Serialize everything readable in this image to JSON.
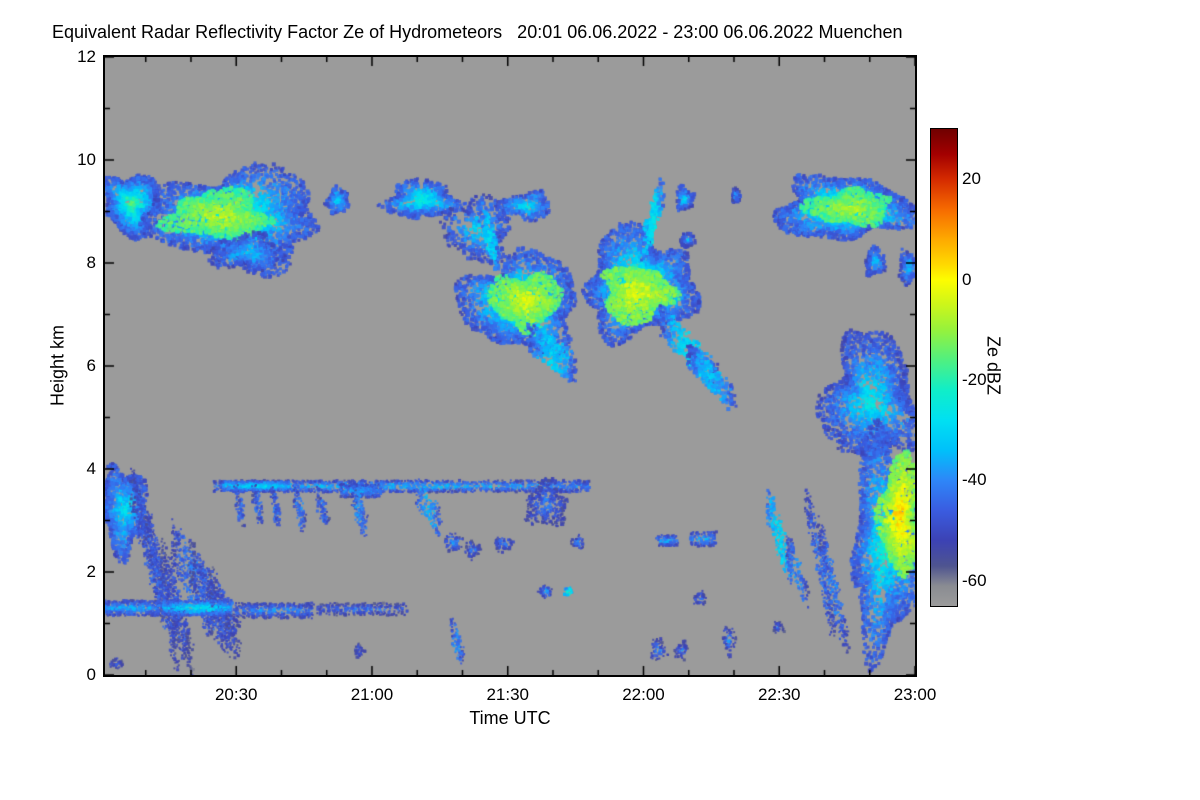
{
  "title": "Equivalent Radar Reflectivity Factor Ze of Hydrometeors   20:01 06.06.2022 - 23:00 06.06.2022 Muenchen",
  "chart_data": {
    "type": "heatmap",
    "title": "Equivalent Radar Reflectivity Factor Ze of Hydrometeors",
    "time_range": "20:01 06.06.2022 - 23:00 06.06.2022",
    "station": "Muenchen",
    "xlabel": "Time UTC",
    "ylabel": "Height km",
    "colorbar_label": "Ze dBZ",
    "background_color": "#9b9b9b",
    "xlim_minutes_after_2000": [
      1,
      180
    ],
    "ylim_km": [
      0,
      12
    ],
    "x_ticks": [
      {
        "t": 30,
        "label": "20:30"
      },
      {
        "t": 60,
        "label": "21:00"
      },
      {
        "t": 90,
        "label": "21:30"
      },
      {
        "t": 120,
        "label": "22:00"
      },
      {
        "t": 150,
        "label": "22:30"
      },
      {
        "t": 180,
        "label": "23:00"
      }
    ],
    "y_ticks": [
      0,
      2,
      4,
      6,
      8,
      10,
      12
    ],
    "colorbar": {
      "vmax": 30,
      "vmin": -65,
      "tick_values": [
        20,
        0,
        -20,
        -40,
        -60
      ],
      "stops": [
        [
          30,
          "#700000"
        ],
        [
          25,
          "#a30000"
        ],
        [
          20,
          "#d42a00"
        ],
        [
          14,
          "#f66a00"
        ],
        [
          8,
          "#feaa00"
        ],
        [
          3,
          "#ffd900"
        ],
        [
          0,
          "#fdfd00"
        ],
        [
          -5,
          "#ccf61a"
        ],
        [
          -10,
          "#96f23c"
        ],
        [
          -16,
          "#50f080"
        ],
        [
          -22,
          "#10eec8"
        ],
        [
          -28,
          "#00e0f2"
        ],
        [
          -34,
          "#00c0fa"
        ],
        [
          -40,
          "#2e86f8"
        ],
        [
          -46,
          "#3a5ce0"
        ],
        [
          -52,
          "#3c42b4"
        ],
        [
          -57,
          "#4e5490"
        ],
        [
          -61,
          "#8a8c92"
        ],
        [
          -65,
          "#9b9b9b"
        ]
      ]
    },
    "clouds": [
      {
        "s": "e",
        "t": [
          1,
          13
        ],
        "h": [
          8.55,
          9.75
        ],
        "core": -14,
        "edge": -48,
        "n": 1100
      },
      {
        "s": "e",
        "t": [
          11,
          49
        ],
        "h": [
          7.95,
          9.8
        ],
        "core": -16,
        "edge": -48,
        "n": 2600
      },
      {
        "s": "e",
        "t": [
          15,
          37
        ],
        "h": [
          8.45,
          9.4
        ],
        "core": -4,
        "edge": -18,
        "n": 1200
      },
      {
        "s": "e",
        "t": [
          24,
          41
        ],
        "h": [
          7.85,
          8.55
        ],
        "core": -30,
        "edge": -50,
        "n": 380
      },
      {
        "s": "e",
        "t": [
          50,
          55
        ],
        "h": [
          8.95,
          9.45
        ],
        "core": -28,
        "edge": -48,
        "n": 160
      },
      {
        "s": "e",
        "t": [
          63,
          79
        ],
        "h": [
          8.85,
          9.6
        ],
        "core": -20,
        "edge": -48,
        "n": 650
      },
      {
        "s": "e",
        "t": [
          76,
          91
        ],
        "h": [
          8.0,
          9.3
        ],
        "core": -28,
        "edge": -50,
        "n": 420
      },
      {
        "s": "k",
        "t": [
          84,
          88
        ],
        "h": [
          9.0,
          8.0
        ],
        "core": -30,
        "edge": -50,
        "n": 160,
        "th": 0.25
      },
      {
        "s": "e",
        "t": [
          88,
          100
        ],
        "h": [
          8.85,
          9.35
        ],
        "core": -26,
        "edge": -48,
        "n": 300
      },
      {
        "s": "e",
        "t": [
          80,
          106
        ],
        "h": [
          6.3,
          8.15
        ],
        "core": -15,
        "edge": -48,
        "n": 2000
      },
      {
        "s": "e",
        "t": [
          86,
          102
        ],
        "h": [
          6.75,
          7.8
        ],
        "core": -2,
        "edge": -16,
        "n": 900
      },
      {
        "s": "k",
        "t": [
          95,
          105
        ],
        "h": [
          6.55,
          5.95
        ],
        "core": -32,
        "edge": -52,
        "n": 260,
        "th": 0.3
      },
      {
        "s": "e",
        "t": [
          107,
          131
        ],
        "h": [
          6.55,
          8.6
        ],
        "core": -14,
        "edge": -48,
        "n": 2400
      },
      {
        "s": "e",
        "t": [
          111,
          126
        ],
        "h": [
          6.85,
          7.95
        ],
        "core": -2,
        "edge": -15,
        "n": 1100
      },
      {
        "s": "k",
        "t": [
          124,
          136
        ],
        "h": [
          6.9,
          5.75
        ],
        "core": -30,
        "edge": -52,
        "n": 300,
        "th": 0.3
      },
      {
        "s": "k",
        "t": [
          120,
          124
        ],
        "h": [
          8.3,
          9.4
        ],
        "core": -28,
        "edge": -48,
        "n": 180,
        "th": 0.3
      },
      {
        "s": "e",
        "t": [
          127,
          131
        ],
        "h": [
          9.0,
          9.5
        ],
        "core": -30,
        "edge": -50,
        "n": 110
      },
      {
        "s": "e",
        "t": [
          128,
          131.5
        ],
        "h": [
          8.3,
          8.6
        ],
        "core": -35,
        "edge": -52,
        "n": 60
      },
      {
        "s": "k",
        "t": [
          130,
          140
        ],
        "h": [
          6.2,
          5.35
        ],
        "core": -34,
        "edge": -54,
        "n": 240,
        "th": 0.25
      },
      {
        "s": "e",
        "t": [
          139.5,
          141.5
        ],
        "h": [
          9.15,
          9.45
        ],
        "core": -34,
        "edge": -52,
        "n": 50
      },
      {
        "s": "e",
        "t": [
          149,
          180
        ],
        "h": [
          8.45,
          9.65
        ],
        "core": -15,
        "edge": -48,
        "n": 2000
      },
      {
        "s": "e",
        "t": [
          156,
          175
        ],
        "h": [
          8.75,
          9.4
        ],
        "core": -6,
        "edge": -18,
        "n": 800
      },
      {
        "s": "e",
        "t": [
          169,
          173.5
        ],
        "h": [
          7.75,
          8.3
        ],
        "core": -30,
        "edge": -50,
        "n": 130
      },
      {
        "s": "e",
        "t": [
          176.5,
          180.5
        ],
        "h": [
          7.6,
          8.25
        ],
        "core": -30,
        "edge": -50,
        "n": 140
      },
      {
        "s": "e",
        "t": [
          160,
          180.5
        ],
        "h": [
          4.1,
          6.6
        ],
        "core": -24,
        "edge": -50,
        "n": 1900
      },
      {
        "s": "e",
        "t": [
          166,
          181
        ],
        "h": [
          0.45,
          4.6
        ],
        "core": -20,
        "edge": -48,
        "n": 2200
      },
      {
        "s": "e",
        "t": [
          172.5,
          181
        ],
        "h": [
          1.9,
          4.3
        ],
        "core": 6,
        "edge": -14,
        "n": 1300
      },
      {
        "s": "k",
        "t": [
          156,
          162
        ],
        "h": [
          3.4,
          1.0
        ],
        "core": -44,
        "edge": -56,
        "n": 260,
        "th": 0.35,
        "sz": 2
      },
      {
        "s": "k",
        "t": [
          159,
          165
        ],
        "h": [
          2.8,
          0.55
        ],
        "core": -42,
        "edge": -55,
        "n": 260,
        "th": 0.3,
        "sz": 2
      },
      {
        "s": "k",
        "t": [
          147.5,
          152.5
        ],
        "h": [
          3.35,
          2.0
        ],
        "core": -30,
        "edge": -50,
        "n": 260,
        "th": 0.3,
        "sz": 2
      },
      {
        "s": "k",
        "t": [
          152,
          156
        ],
        "h": [
          2.5,
          1.5
        ],
        "core": -40,
        "edge": -54,
        "n": 140,
        "th": 0.25,
        "sz": 2
      },
      {
        "s": "e",
        "t": [
          0.5,
          10
        ],
        "h": [
          2.35,
          4.05
        ],
        "core": -26,
        "edge": -48,
        "n": 900
      },
      {
        "s": "k",
        "t": [
          7,
          14
        ],
        "h": [
          3.7,
          1.4
        ],
        "core": -46,
        "edge": -57,
        "n": 420,
        "th": 0.5,
        "sz": 2
      },
      {
        "s": "k",
        "t": [
          10,
          17
        ],
        "h": [
          3.0,
          0.45
        ],
        "core": -46,
        "edge": -57,
        "n": 420,
        "th": 0.45,
        "sz": 2
      },
      {
        "s": "k",
        "t": [
          13.5,
          20
        ],
        "h": [
          2.3,
          0.3
        ],
        "core": -48,
        "edge": -58,
        "n": 380,
        "th": 0.4,
        "sz": 2
      },
      {
        "s": "k",
        "t": [
          16,
          25
        ],
        "h": [
          2.6,
          1.1
        ],
        "core": -42,
        "edge": -56,
        "n": 420,
        "th": 0.5,
        "sz": 2
      },
      {
        "s": "k",
        "t": [
          20,
          28.5
        ],
        "h": [
          2.2,
          0.75
        ],
        "core": -46,
        "edge": -57,
        "n": 380,
        "th": 0.45,
        "sz": 2
      },
      {
        "s": "k",
        "t": [
          24,
          30.5
        ],
        "h": [
          1.8,
          0.6
        ],
        "core": -48,
        "edge": -58,
        "n": 300,
        "th": 0.4,
        "sz": 2
      },
      {
        "s": "e",
        "t": [
          2,
          5
        ],
        "h": [
          0.1,
          0.35
        ],
        "core": -44,
        "edge": -55,
        "n": 40,
        "sz": 2
      },
      {
        "s": "b",
        "t": [
          0.5,
          13
        ],
        "h": [
          1.15,
          1.45
        ],
        "core": -34,
        "edge": -52,
        "n": 420,
        "sz": 2
      },
      {
        "s": "b",
        "t": [
          14,
          29
        ],
        "h": [
          1.15,
          1.45
        ],
        "core": -27,
        "edge": -48,
        "n": 520,
        "sz": 2
      },
      {
        "s": "b",
        "t": [
          30,
          47
        ],
        "h": [
          1.1,
          1.4
        ],
        "core": -38,
        "edge": -54,
        "n": 420,
        "sz": 2
      },
      {
        "s": "b",
        "t": [
          48,
          68
        ],
        "h": [
          1.15,
          1.4
        ],
        "core": -43,
        "edge": -56,
        "n": 260,
        "sz": 2
      },
      {
        "s": "b",
        "t": [
          25,
          108
        ],
        "h": [
          3.55,
          3.78
        ],
        "core": -34,
        "edge": -52,
        "n": 1500,
        "sz": 2
      },
      {
        "s": "b",
        "t": [
          27,
          42
        ],
        "h": [
          3.58,
          3.76
        ],
        "core": -28,
        "edge": -46,
        "n": 420,
        "sz": 2
      },
      {
        "s": "b",
        "t": [
          53,
          62
        ],
        "h": [
          3.45,
          3.72
        ],
        "core": -36,
        "edge": -52,
        "n": 300,
        "sz": 2
      },
      {
        "s": "k",
        "t": [
          30,
          31.5
        ],
        "h": [
          3.55,
          3.0
        ],
        "core": -44,
        "edge": -55,
        "n": 70,
        "th": 0.18,
        "sz": 2
      },
      {
        "s": "k",
        "t": [
          34,
          35.5
        ],
        "h": [
          3.55,
          3.05
        ],
        "core": -44,
        "edge": -55,
        "n": 70,
        "th": 0.18,
        "sz": 2
      },
      {
        "s": "k",
        "t": [
          38,
          39.5
        ],
        "h": [
          3.55,
          2.95
        ],
        "core": -44,
        "edge": -55,
        "n": 80,
        "th": 0.18,
        "sz": 2
      },
      {
        "s": "k",
        "t": [
          43,
          45
        ],
        "h": [
          3.55,
          2.9
        ],
        "core": -42,
        "edge": -55,
        "n": 90,
        "th": 0.2,
        "sz": 2
      },
      {
        "s": "k",
        "t": [
          48,
          50
        ],
        "h": [
          3.5,
          3.0
        ],
        "core": -44,
        "edge": -55,
        "n": 80,
        "th": 0.2,
        "sz": 2
      },
      {
        "s": "k",
        "t": [
          56,
          58.5
        ],
        "h": [
          3.5,
          2.85
        ],
        "core": -40,
        "edge": -54,
        "n": 110,
        "th": 0.25,
        "sz": 2
      },
      {
        "s": "k",
        "t": [
          70,
          75
        ],
        "h": [
          3.6,
          2.95
        ],
        "core": -36,
        "edge": -52,
        "n": 160,
        "th": 0.3,
        "sz": 2
      },
      {
        "s": "e",
        "t": [
          94,
          103
        ],
        "h": [
          2.85,
          3.75
        ],
        "core": -38,
        "edge": -54,
        "n": 420,
        "sz": 2
      },
      {
        "s": "e",
        "t": [
          76,
          80
        ],
        "h": [
          2.4,
          2.75
        ],
        "core": -36,
        "edge": -52,
        "n": 90,
        "sz": 2
      },
      {
        "s": "e",
        "t": [
          80.5,
          84
        ],
        "h": [
          2.25,
          2.6
        ],
        "core": -38,
        "edge": -53,
        "n": 80,
        "sz": 2
      },
      {
        "s": "e",
        "t": [
          87,
          91
        ],
        "h": [
          2.4,
          2.7
        ],
        "core": -38,
        "edge": -53,
        "n": 80,
        "sz": 2
      },
      {
        "s": "e",
        "t": [
          104,
          107
        ],
        "h": [
          2.45,
          2.7
        ],
        "core": -38,
        "edge": -53,
        "n": 60,
        "sz": 2
      },
      {
        "s": "b",
        "t": [
          123,
          127.5
        ],
        "h": [
          2.5,
          2.72
        ],
        "core": -36,
        "edge": -52,
        "n": 110,
        "sz": 2
      },
      {
        "s": "b",
        "t": [
          130.5,
          136
        ],
        "h": [
          2.5,
          2.78
        ],
        "core": -36,
        "edge": -52,
        "n": 130,
        "sz": 2
      },
      {
        "s": "k",
        "t": [
          77.5,
          80
        ],
        "h": [
          0.95,
          0.3
        ],
        "core": -40,
        "edge": -54,
        "n": 80,
        "th": 0.2,
        "sz": 2
      },
      {
        "s": "e",
        "t": [
          97,
          100
        ],
        "h": [
          1.5,
          1.75
        ],
        "core": -34,
        "edge": -52,
        "n": 60,
        "sz": 2
      },
      {
        "s": "e",
        "t": [
          102.5,
          104.5
        ],
        "h": [
          1.5,
          1.72
        ],
        "core": -10,
        "edge": -40,
        "n": 30,
        "sz": 2
      },
      {
        "s": "e",
        "t": [
          121.5,
          125
        ],
        "h": [
          0.25,
          0.7
        ],
        "core": -38,
        "edge": -54,
        "n": 70,
        "sz": 2
      },
      {
        "s": "e",
        "t": [
          127,
          130
        ],
        "h": [
          0.3,
          0.65
        ],
        "core": -40,
        "edge": -54,
        "n": 60,
        "sz": 2
      },
      {
        "s": "e",
        "t": [
          137.5,
          140.5
        ],
        "h": [
          0.4,
          0.95
        ],
        "core": -38,
        "edge": -54,
        "n": 70,
        "sz": 2
      },
      {
        "s": "e",
        "t": [
          131,
          134
        ],
        "h": [
          1.35,
          1.6
        ],
        "core": -40,
        "edge": -54,
        "n": 50,
        "sz": 2
      },
      {
        "s": "e",
        "t": [
          56,
          58.5
        ],
        "h": [
          0.35,
          0.6
        ],
        "core": -44,
        "edge": -55,
        "n": 40,
        "sz": 2
      },
      {
        "s": "e",
        "t": [
          148.5,
          151
        ],
        "h": [
          0.8,
          1.05
        ],
        "core": -42,
        "edge": -55,
        "n": 40,
        "sz": 2
      }
    ]
  }
}
